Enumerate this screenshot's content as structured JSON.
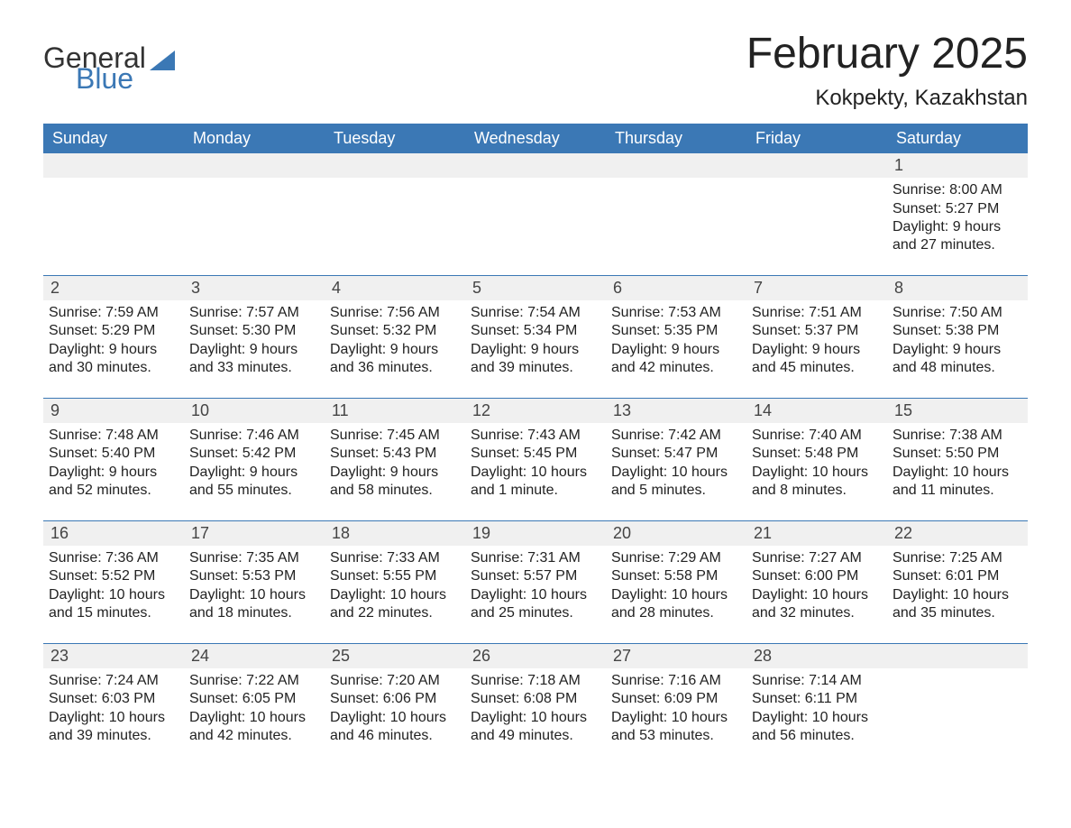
{
  "brand": {
    "part1": "General",
    "part2": "Blue",
    "accent_color": "#3b78b5"
  },
  "title": {
    "month": "February 2025",
    "location": "Kokpekty, Kazakhstan"
  },
  "weekdays": [
    "Sunday",
    "Monday",
    "Tuesday",
    "Wednesday",
    "Thursday",
    "Friday",
    "Saturday"
  ],
  "style": {
    "header_bg": "#3b78b5",
    "header_text": "#ffffff",
    "strip_bg": "#f0f0f0",
    "rule_color": "#3b78b5",
    "body_text": "#222222",
    "title_fontsize": 48,
    "location_fontsize": 24,
    "weekday_fontsize": 18,
    "cell_fontsize": 16
  },
  "weeks": [
    [
      null,
      null,
      null,
      null,
      null,
      null,
      {
        "n": "1",
        "sunrise": "8:00 AM",
        "sunset": "5:27 PM",
        "daylight": "9 hours and 27 minutes."
      }
    ],
    [
      {
        "n": "2",
        "sunrise": "7:59 AM",
        "sunset": "5:29 PM",
        "daylight": "9 hours and 30 minutes."
      },
      {
        "n": "3",
        "sunrise": "7:57 AM",
        "sunset": "5:30 PM",
        "daylight": "9 hours and 33 minutes."
      },
      {
        "n": "4",
        "sunrise": "7:56 AM",
        "sunset": "5:32 PM",
        "daylight": "9 hours and 36 minutes."
      },
      {
        "n": "5",
        "sunrise": "7:54 AM",
        "sunset": "5:34 PM",
        "daylight": "9 hours and 39 minutes."
      },
      {
        "n": "6",
        "sunrise": "7:53 AM",
        "sunset": "5:35 PM",
        "daylight": "9 hours and 42 minutes."
      },
      {
        "n": "7",
        "sunrise": "7:51 AM",
        "sunset": "5:37 PM",
        "daylight": "9 hours and 45 minutes."
      },
      {
        "n": "8",
        "sunrise": "7:50 AM",
        "sunset": "5:38 PM",
        "daylight": "9 hours and 48 minutes."
      }
    ],
    [
      {
        "n": "9",
        "sunrise": "7:48 AM",
        "sunset": "5:40 PM",
        "daylight": "9 hours and 52 minutes."
      },
      {
        "n": "10",
        "sunrise": "7:46 AM",
        "sunset": "5:42 PM",
        "daylight": "9 hours and 55 minutes."
      },
      {
        "n": "11",
        "sunrise": "7:45 AM",
        "sunset": "5:43 PM",
        "daylight": "9 hours and 58 minutes."
      },
      {
        "n": "12",
        "sunrise": "7:43 AM",
        "sunset": "5:45 PM",
        "daylight": "10 hours and 1 minute."
      },
      {
        "n": "13",
        "sunrise": "7:42 AM",
        "sunset": "5:47 PM",
        "daylight": "10 hours and 5 minutes."
      },
      {
        "n": "14",
        "sunrise": "7:40 AM",
        "sunset": "5:48 PM",
        "daylight": "10 hours and 8 minutes."
      },
      {
        "n": "15",
        "sunrise": "7:38 AM",
        "sunset": "5:50 PM",
        "daylight": "10 hours and 11 minutes."
      }
    ],
    [
      {
        "n": "16",
        "sunrise": "7:36 AM",
        "sunset": "5:52 PM",
        "daylight": "10 hours and 15 minutes."
      },
      {
        "n": "17",
        "sunrise": "7:35 AM",
        "sunset": "5:53 PM",
        "daylight": "10 hours and 18 minutes."
      },
      {
        "n": "18",
        "sunrise": "7:33 AM",
        "sunset": "5:55 PM",
        "daylight": "10 hours and 22 minutes."
      },
      {
        "n": "19",
        "sunrise": "7:31 AM",
        "sunset": "5:57 PM",
        "daylight": "10 hours and 25 minutes."
      },
      {
        "n": "20",
        "sunrise": "7:29 AM",
        "sunset": "5:58 PM",
        "daylight": "10 hours and 28 minutes."
      },
      {
        "n": "21",
        "sunrise": "7:27 AM",
        "sunset": "6:00 PM",
        "daylight": "10 hours and 32 minutes."
      },
      {
        "n": "22",
        "sunrise": "7:25 AM",
        "sunset": "6:01 PM",
        "daylight": "10 hours and 35 minutes."
      }
    ],
    [
      {
        "n": "23",
        "sunrise": "7:24 AM",
        "sunset": "6:03 PM",
        "daylight": "10 hours and 39 minutes."
      },
      {
        "n": "24",
        "sunrise": "7:22 AM",
        "sunset": "6:05 PM",
        "daylight": "10 hours and 42 minutes."
      },
      {
        "n": "25",
        "sunrise": "7:20 AM",
        "sunset": "6:06 PM",
        "daylight": "10 hours and 46 minutes."
      },
      {
        "n": "26",
        "sunrise": "7:18 AM",
        "sunset": "6:08 PM",
        "daylight": "10 hours and 49 minutes."
      },
      {
        "n": "27",
        "sunrise": "7:16 AM",
        "sunset": "6:09 PM",
        "daylight": "10 hours and 53 minutes."
      },
      {
        "n": "28",
        "sunrise": "7:14 AM",
        "sunset": "6:11 PM",
        "daylight": "10 hours and 56 minutes."
      },
      null
    ]
  ],
  "labels": {
    "sunrise": "Sunrise: ",
    "sunset": "Sunset: ",
    "daylight": "Daylight: "
  }
}
